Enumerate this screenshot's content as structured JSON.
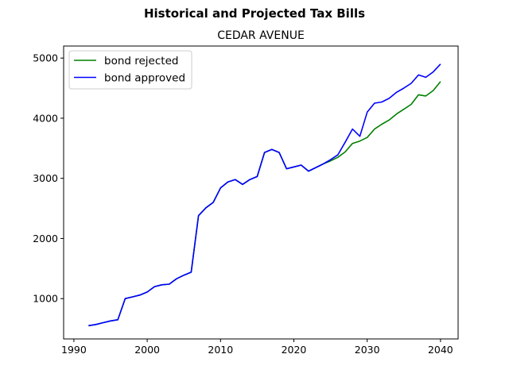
{
  "figure": {
    "suptitle": "Historical and Projected Tax Bills"
  },
  "chart_data": {
    "type": "line",
    "title": "CEDAR AVENUE",
    "xlabel": "",
    "ylabel": "",
    "xlim": [
      1988.6,
      2042.4
    ],
    "ylim": [
      330,
      5200
    ],
    "xticks": [
      1990,
      2000,
      2010,
      2020,
      2030,
      2040
    ],
    "yticks": [
      1000,
      2000,
      3000,
      4000,
      5000
    ],
    "grid": false,
    "legend_position": "top-left",
    "series": [
      {
        "name": "bond rejected",
        "color": "#008000",
        "x": [
          1992,
          1993,
          1994,
          1995,
          1996,
          1997,
          1998,
          1999,
          2000,
          2001,
          2002,
          2003,
          2004,
          2005,
          2006,
          2007,
          2008,
          2009,
          2010,
          2011,
          2012,
          2013,
          2014,
          2015,
          2016,
          2017,
          2018,
          2019,
          2020,
          2021,
          2022,
          2023,
          2024,
          2025,
          2026,
          2027,
          2028,
          2029,
          2030,
          2031,
          2032,
          2033,
          2034,
          2035,
          2036,
          2037,
          2038,
          2039,
          2040
        ],
        "y": [
          550,
          570,
          600,
          630,
          650,
          1000,
          1030,
          1060,
          1110,
          1200,
          1230,
          1240,
          1330,
          1390,
          1440,
          2380,
          2510,
          2600,
          2840,
          2940,
          2980,
          2900,
          2980,
          3030,
          3430,
          3480,
          3430,
          3160,
          3190,
          3220,
          3120,
          3180,
          3240,
          3290,
          3350,
          3440,
          3580,
          3620,
          3680,
          3820,
          3900,
          3970,
          4070,
          4150,
          4230,
          4390,
          4370,
          4460,
          4610
        ]
      },
      {
        "name": "bond approved",
        "color": "#0000ff",
        "x": [
          1992,
          1993,
          1994,
          1995,
          1996,
          1997,
          1998,
          1999,
          2000,
          2001,
          2002,
          2003,
          2004,
          2005,
          2006,
          2007,
          2008,
          2009,
          2010,
          2011,
          2012,
          2013,
          2014,
          2015,
          2016,
          2017,
          2018,
          2019,
          2020,
          2021,
          2022,
          2023,
          2024,
          2025,
          2026,
          2027,
          2028,
          2029,
          2030,
          2031,
          2032,
          2033,
          2034,
          2035,
          2036,
          2037,
          2038,
          2039,
          2040
        ],
        "y": [
          550,
          570,
          600,
          630,
          650,
          1000,
          1030,
          1060,
          1110,
          1200,
          1230,
          1240,
          1330,
          1390,
          1440,
          2380,
          2510,
          2600,
          2840,
          2940,
          2980,
          2900,
          2980,
          3030,
          3430,
          3480,
          3430,
          3160,
          3190,
          3220,
          3120,
          3180,
          3240,
          3310,
          3390,
          3600,
          3820,
          3700,
          4100,
          4250,
          4270,
          4330,
          4430,
          4500,
          4580,
          4720,
          4680,
          4770,
          4900
        ]
      }
    ]
  }
}
